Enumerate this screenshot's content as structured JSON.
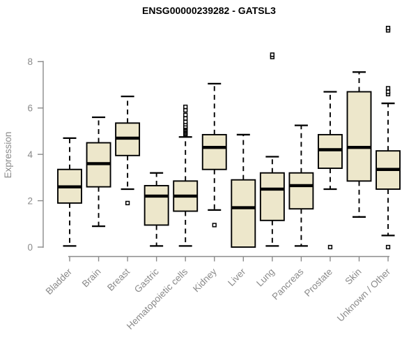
{
  "title": "ENSG00000239282 - GATSL3",
  "colors": {
    "box_fill": "#EDE7CB",
    "box_border": "#000000",
    "median": "#000000",
    "axis": "#8a8a8a",
    "title_color": "#000000",
    "background": "#ffffff"
  },
  "chart_data": {
    "type": "boxplot",
    "title": "ENSG00000239282 - GATSL3",
    "xlabel": "",
    "ylabel": "Expression",
    "ylim": [
      0,
      9.6
    ],
    "yticks": [
      0,
      2,
      4,
      6,
      8
    ],
    "grid": false,
    "legend": "none",
    "categories": [
      "Bladder",
      "Brain",
      "Breast",
      "Gastric",
      "Hematopoietic cells",
      "Kidney",
      "Liver",
      "Lung",
      "Pancreas",
      "Prostate",
      "Skin",
      "Unknown / Other"
    ],
    "series": [
      {
        "name": "Bladder",
        "lo": 0.05,
        "q1": 1.9,
        "med": 2.6,
        "q3": 3.35,
        "hi": 4.7,
        "outliers": []
      },
      {
        "name": "Brain",
        "lo": 0.9,
        "q1": 2.6,
        "med": 3.6,
        "q3": 4.5,
        "hi": 5.6,
        "outliers": []
      },
      {
        "name": "Breast",
        "lo": 2.5,
        "q1": 3.95,
        "med": 4.7,
        "q3": 5.35,
        "hi": 6.5,
        "outliers": [
          1.9
        ]
      },
      {
        "name": "Gastric",
        "lo": 0.05,
        "q1": 0.95,
        "med": 2.2,
        "q3": 2.65,
        "hi": 3.2,
        "outliers": []
      },
      {
        "name": "Hematopoietic cells",
        "lo": 0.05,
        "q1": 1.55,
        "med": 2.2,
        "q3": 2.85,
        "hi": 4.75,
        "outliers": [
          4.85,
          4.9,
          4.95,
          5.0,
          5.05,
          5.1,
          5.15,
          5.2,
          5.3,
          5.4,
          5.55,
          5.7,
          5.9,
          6.05
        ]
      },
      {
        "name": "Kidney",
        "lo": 1.6,
        "q1": 3.35,
        "med": 4.3,
        "q3": 4.85,
        "hi": 7.05,
        "outliers": [
          0.95
        ]
      },
      {
        "name": "Liver",
        "lo": 0.0,
        "q1": 0.0,
        "med": 1.7,
        "q3": 2.9,
        "hi": 4.85,
        "outliers": []
      },
      {
        "name": "Lung",
        "lo": 0.05,
        "q1": 1.15,
        "med": 2.5,
        "q3": 3.2,
        "hi": 3.9,
        "outliers": [
          8.2,
          8.3
        ]
      },
      {
        "name": "Pancreas",
        "lo": 0.05,
        "q1": 1.65,
        "med": 2.65,
        "q3": 3.2,
        "hi": 5.25,
        "outliers": []
      },
      {
        "name": "Prostate",
        "lo": 2.5,
        "q1": 3.4,
        "med": 4.2,
        "q3": 4.85,
        "hi": 6.7,
        "outliers": [
          0.0
        ]
      },
      {
        "name": "Skin",
        "lo": 1.3,
        "q1": 2.85,
        "med": 4.3,
        "q3": 6.7,
        "hi": 7.55,
        "outliers": []
      },
      {
        "name": "Unknown / Other",
        "lo": 0.5,
        "q1": 2.5,
        "med": 3.35,
        "q3": 4.15,
        "hi": 6.2,
        "outliers": [
          0.0,
          6.6,
          6.7,
          6.85,
          9.35,
          9.45
        ]
      }
    ]
  }
}
